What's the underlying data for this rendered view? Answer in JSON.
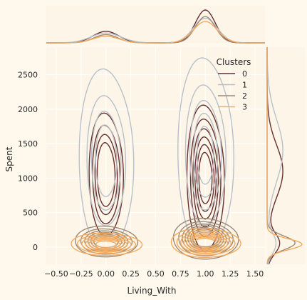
{
  "colors": {
    "background": "#FFF9ED",
    "plot_background": "#FDF6E8",
    "grid": "#FFFFFF",
    "cluster_0": "#682F2F",
    "cluster_1": "#B9C0C9",
    "cluster_2": "#9F8A78",
    "cluster_3": "#F3AB60"
  },
  "chart_data": {
    "type": "kde-jointplot",
    "xlabel": "Living_With",
    "ylabel": "Spent",
    "xlim": [
      -0.6,
      1.6
    ],
    "ylim": [
      -250,
      2900
    ],
    "x_ticks": [
      -0.5,
      -0.25,
      0.0,
      0.25,
      0.5,
      0.75,
      1.0,
      1.25,
      1.5
    ],
    "x_tick_labels": [
      "−0.50",
      "−0.25",
      "0.00",
      "0.25",
      "0.50",
      "0.75",
      "1.00",
      "1.25",
      "1.50"
    ],
    "y_ticks": [
      0,
      500,
      1000,
      1500,
      2000,
      2500
    ],
    "y_tick_labels": [
      "0",
      "500",
      "1000",
      "1500",
      "2000",
      "2500"
    ],
    "grid": true,
    "legend": {
      "title": "Clusters",
      "placement": "upper right",
      "entries": [
        "0",
        "1",
        "2",
        "3"
      ]
    },
    "series": [
      {
        "name": "0",
        "color": "#682F2F",
        "groups": [
          {
            "x": 0.0,
            "y_center": 1050,
            "sx": 0.09,
            "sy": 480,
            "levels": [
              0.17,
              0.32,
              0.47,
              0.62
            ]
          },
          {
            "x": 1.0,
            "y_center": 1000,
            "sx": 0.09,
            "sy": 520,
            "levels": [
              0.12,
              0.25,
              0.38,
              0.51,
              0.64,
              0.77
            ]
          }
        ],
        "marginal_x": [
          {
            "x": 0.0,
            "h": 0.35,
            "w": 0.13
          },
          {
            "x": 1.0,
            "h": 1.0,
            "w": 0.1
          }
        ],
        "marginal_y": [
          {
            "y": 1100,
            "h": 0.45,
            "w": 380
          },
          {
            "y": 50,
            "h": 0.35,
            "w": 150
          }
        ]
      },
      {
        "name": "1",
        "color": "#B9C0C9",
        "groups": [
          {
            "x": 0.0,
            "y_center": 1250,
            "sx": 0.12,
            "sy": 600,
            "levels": [
              0.08,
              0.28,
              0.48,
              0.68
            ]
          },
          {
            "x": 1.0,
            "y_center": 1330,
            "sx": 0.12,
            "sy": 620,
            "levels": [
              0.07,
              0.25,
              0.43,
              0.61,
              0.79
            ]
          }
        ],
        "marginal_x": [
          {
            "x": 0.0,
            "h": 0.3,
            "w": 0.15
          },
          {
            "x": 1.0,
            "h": 0.75,
            "w": 0.12
          }
        ],
        "marginal_y": [
          {
            "y": 1400,
            "h": 0.45,
            "w": 450
          },
          {
            "y": 50,
            "h": 0.25,
            "w": 150
          }
        ]
      },
      {
        "name": "2",
        "color": "#9F8A78",
        "groups": [
          {
            "x": 0.0,
            "y_center": 80,
            "sx": 0.15,
            "sy": 110,
            "levels": [
              0.12,
              0.24,
              0.36,
              0.48,
              0.6,
              0.72
            ]
          },
          {
            "x": 1.0,
            "y_center": 120,
            "sx": 0.15,
            "sy": 140,
            "levels": [
              0.1,
              0.2,
              0.3,
              0.4,
              0.5,
              0.6,
              0.7
            ]
          }
        ],
        "marginal_x": [
          {
            "x": 0.0,
            "h": 0.25,
            "w": 0.12
          },
          {
            "x": 1.0,
            "h": 0.8,
            "w": 0.1
          }
        ],
        "marginal_y": [
          {
            "y": 60,
            "h": 0.8,
            "w": 100
          }
        ]
      },
      {
        "name": "3",
        "color": "#F3AB60",
        "groups": [
          {
            "x": 0.0,
            "y_center": 40,
            "sx": 0.17,
            "sy": 80,
            "levels": [
              0.12,
              0.24,
              0.36,
              0.48,
              0.6,
              0.72,
              0.84
            ]
          },
          {
            "x": 1.0,
            "y_center": 60,
            "sx": 0.16,
            "sy": 100,
            "levels": [
              0.1,
              0.2,
              0.3,
              0.4,
              0.5,
              0.6,
              0.7,
              0.8
            ]
          }
        ],
        "marginal_x": [
          {
            "x": 0.0,
            "h": 0.2,
            "w": 0.13
          },
          {
            "x": 1.0,
            "h": 0.65,
            "w": 0.12
          }
        ],
        "marginal_y": [
          {
            "y": 40,
            "h": 1.0,
            "w": 80
          }
        ]
      }
    ]
  }
}
